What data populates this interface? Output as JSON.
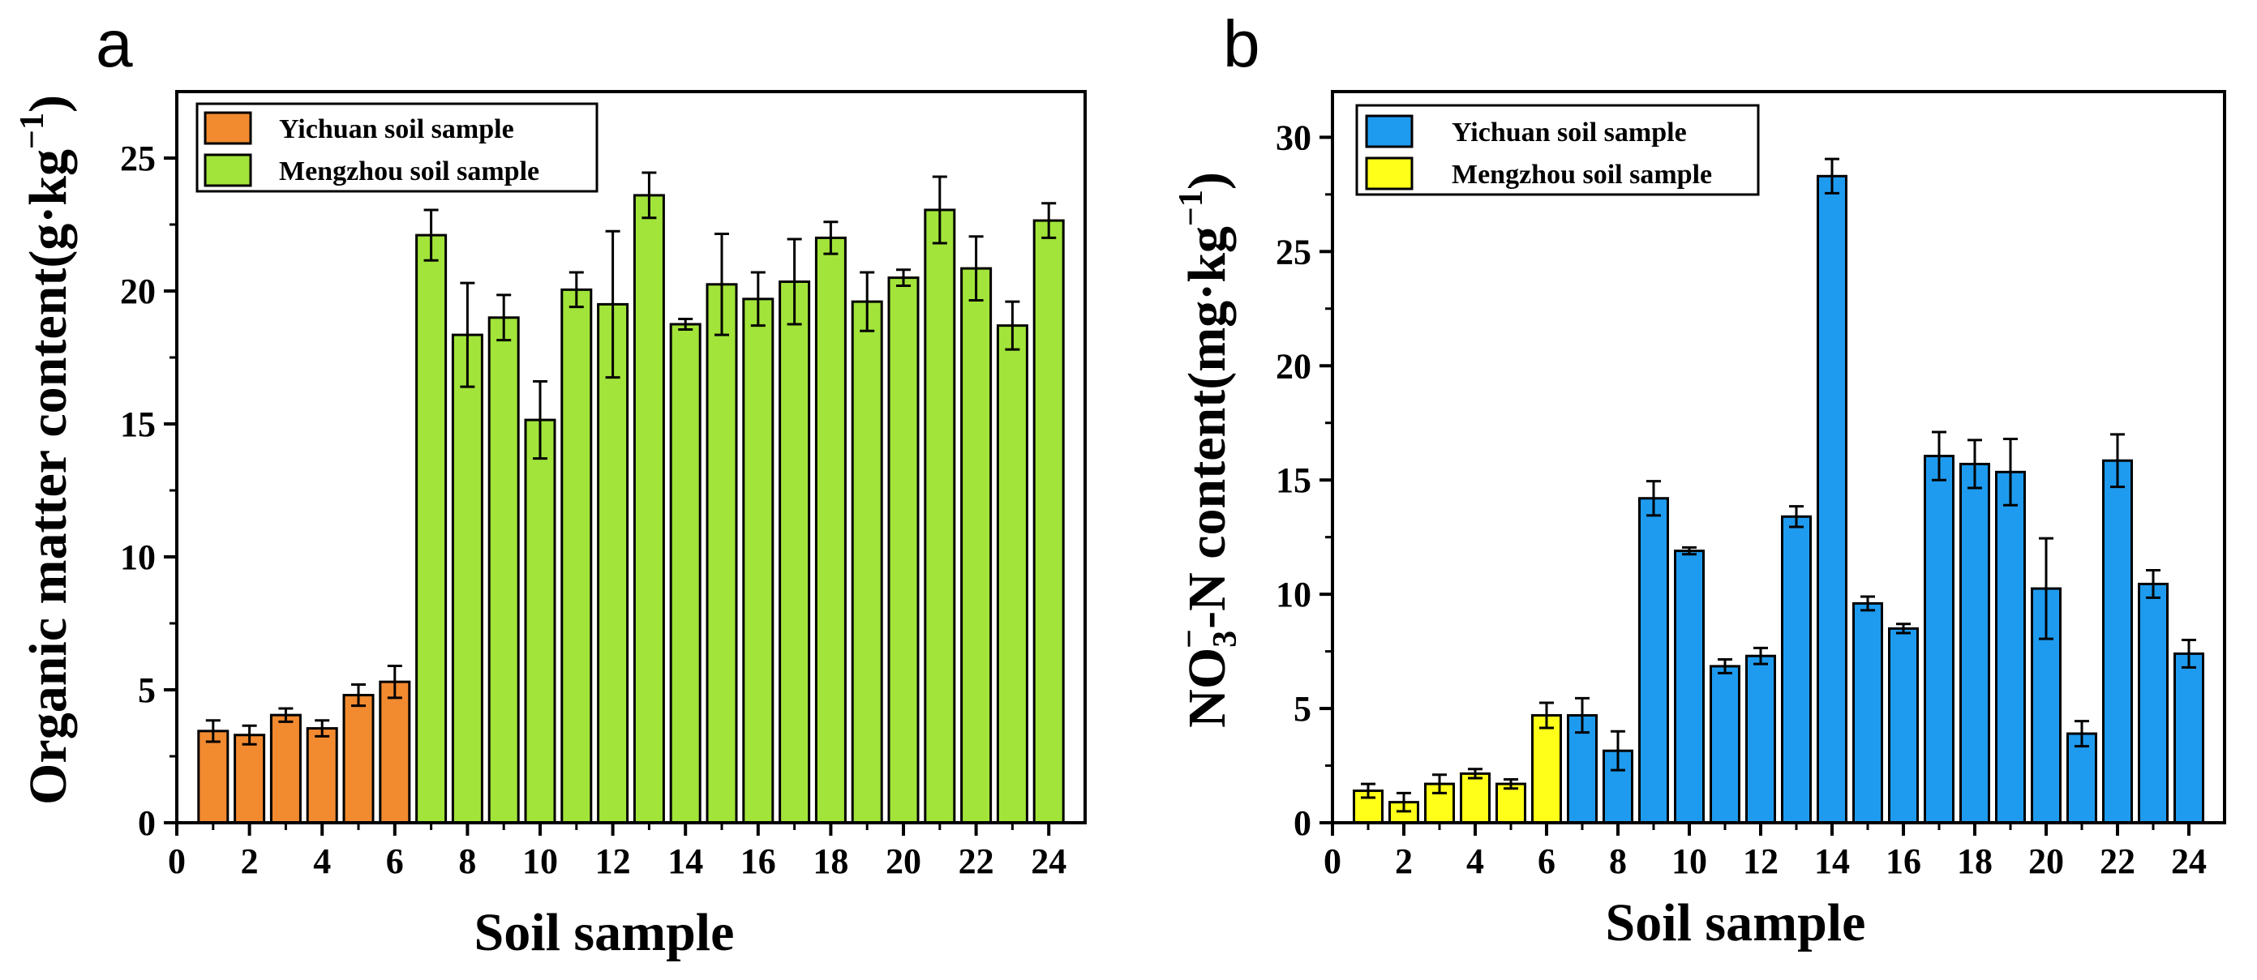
{
  "chart_data": [
    {
      "type": "bar",
      "panel_label": "a",
      "xlabel": "Soil sample",
      "ylabel": "Organic matter content(g·kg",
      "ylabel_superscript": "−1",
      "ylabel_suffix": ")",
      "xlim": [
        0,
        25
      ],
      "ylim": [
        0,
        27.5
      ],
      "x_ticks": [
        0,
        2,
        4,
        6,
        8,
        10,
        12,
        14,
        16,
        18,
        20,
        22,
        24
      ],
      "y_ticks": [
        0,
        5,
        10,
        15,
        20,
        25
      ],
      "legend_position": "top-left",
      "series": [
        {
          "name": "Yichuan soil sample",
          "color": "#F28A30",
          "x": [
            1,
            2,
            3,
            4,
            5,
            6
          ],
          "values": [
            3.45,
            3.3,
            4.05,
            3.55,
            4.8,
            5.3
          ],
          "errors": [
            0.4,
            0.35,
            0.25,
            0.3,
            0.4,
            0.6
          ]
        },
        {
          "name": "Mengzhou soil sample",
          "color": "#A2E43A",
          "x": [
            7,
            8,
            9,
            10,
            11,
            12,
            13,
            14,
            15,
            16,
            17,
            18,
            19,
            20,
            21,
            22,
            23,
            24
          ],
          "values": [
            22.1,
            18.35,
            19.0,
            15.15,
            20.05,
            19.5,
            23.6,
            18.75,
            20.25,
            19.7,
            20.35,
            22.0,
            19.6,
            20.5,
            23.05,
            20.85,
            18.7,
            22.65
          ],
          "errors": [
            0.95,
            1.95,
            0.85,
            1.45,
            0.65,
            2.75,
            0.85,
            0.2,
            1.9,
            1.0,
            1.6,
            0.6,
            1.1,
            0.3,
            1.25,
            1.2,
            0.9,
            0.65
          ]
        }
      ]
    },
    {
      "type": "bar",
      "panel_label": "b",
      "xlabel": "Soil sample",
      "ylabel": "NO",
      "ylabel_subscript": "3",
      "ylabel_superscript_ion": "−",
      "ylabel_rest": "-N content(mg·kg",
      "ylabel_superscript": "−1",
      "ylabel_suffix": ")",
      "xlim": [
        0,
        25
      ],
      "ylim": [
        0,
        32
      ],
      "x_ticks": [
        0,
        2,
        4,
        6,
        8,
        10,
        12,
        14,
        16,
        18,
        20,
        22,
        24
      ],
      "y_ticks": [
        0,
        5,
        10,
        15,
        20,
        25,
        30
      ],
      "legend_position": "top-left",
      "series": [
        {
          "name": "Yichuan soil sample",
          "color": "#1E9BEF",
          "x": [
            7,
            8,
            9,
            10,
            11,
            12,
            13,
            14,
            15,
            16,
            17,
            18,
            19,
            20,
            21,
            22,
            23,
            24
          ],
          "values": [
            4.7,
            3.15,
            14.2,
            11.9,
            6.85,
            7.3,
            13.4,
            28.3,
            9.6,
            8.5,
            16.05,
            15.7,
            15.35,
            10.25,
            3.9,
            15.85,
            10.45,
            7.4
          ],
          "errors": [
            0.75,
            0.85,
            0.75,
            0.15,
            0.3,
            0.35,
            0.45,
            0.75,
            0.3,
            0.2,
            1.05,
            1.05,
            1.45,
            2.2,
            0.55,
            1.15,
            0.6,
            0.6
          ]
        },
        {
          "name": "Mengzhou soil sample",
          "color": "#FFFF19",
          "x": [
            1,
            2,
            3,
            4,
            5,
            6
          ],
          "values": [
            1.4,
            0.9,
            1.7,
            2.15,
            1.7,
            4.7
          ],
          "errors": [
            0.3,
            0.4,
            0.4,
            0.2,
            0.2,
            0.55
          ]
        }
      ]
    }
  ]
}
